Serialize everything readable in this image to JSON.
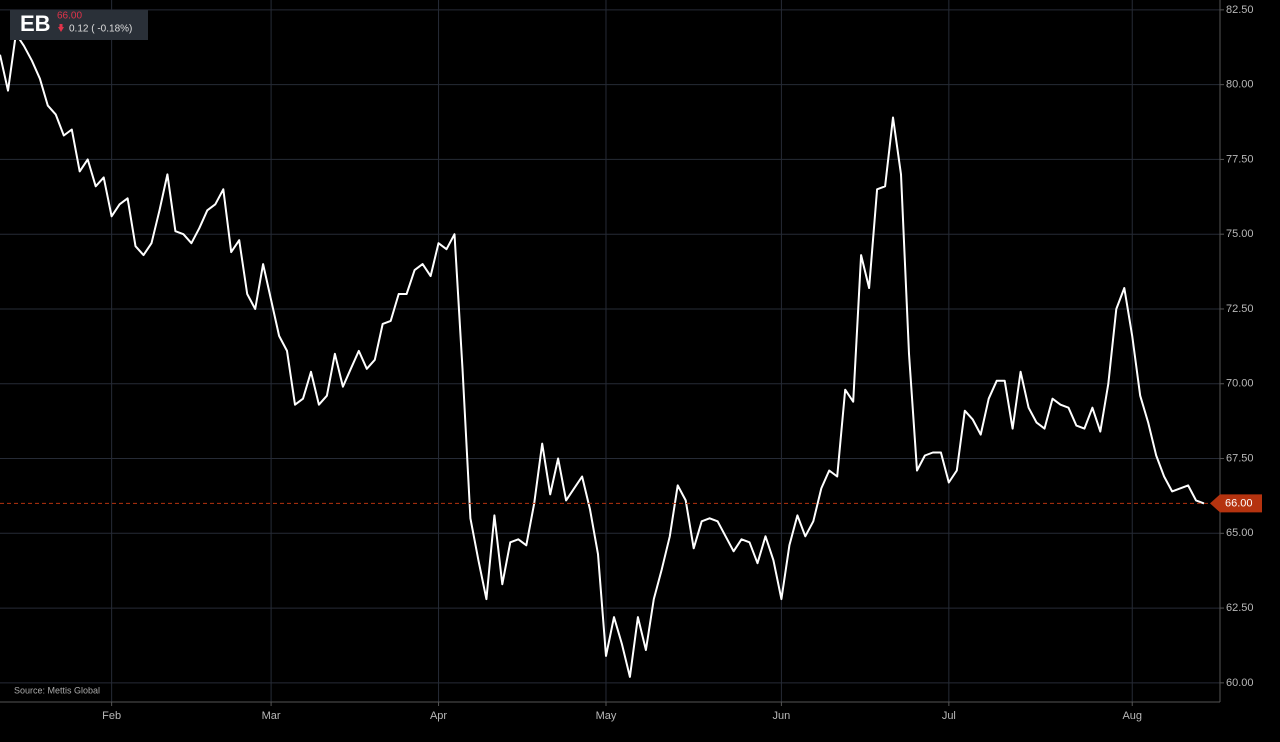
{
  "chart_data": {
    "type": "line",
    "header": {
      "symbol": "EB",
      "price": "66.00",
      "change": "0.12 ( -0.18%)"
    },
    "source": "Source: Mettis Global",
    "categories": [
      null,
      null,
      null,
      null,
      null,
      null,
      null,
      null,
      null,
      null,
      null,
      null,
      null,
      null,
      "Feb",
      null,
      null,
      null,
      null,
      null,
      null,
      null,
      null,
      null,
      null,
      null,
      null,
      null,
      null,
      null,
      null,
      null,
      null,
      null,
      "Mar",
      null,
      null,
      null,
      null,
      null,
      null,
      null,
      null,
      null,
      null,
      null,
      null,
      null,
      null,
      null,
      null,
      null,
      null,
      null,
      null,
      "Apr",
      null,
      null,
      null,
      null,
      null,
      null,
      null,
      null,
      null,
      null,
      null,
      null,
      null,
      null,
      null,
      null,
      null,
      null,
      null,
      null,
      "May",
      null,
      null,
      null,
      null,
      null,
      null,
      null,
      null,
      null,
      null,
      null,
      null,
      null,
      null,
      null,
      null,
      null,
      null,
      null,
      null,
      null,
      "Jun",
      null,
      null,
      null,
      null,
      null,
      null,
      null,
      null,
      null,
      null,
      null,
      null,
      null,
      null,
      null,
      null,
      null,
      null,
      null,
      null,
      "Jul",
      null,
      null,
      null,
      null,
      null,
      null,
      null,
      null,
      null,
      null,
      null,
      null,
      null,
      null,
      null,
      null,
      null,
      null,
      null,
      null,
      null,
      null,
      "Aug",
      null,
      null,
      null,
      null,
      null,
      null,
      null,
      null,
      null
    ],
    "series": [
      {
        "name": "EB",
        "color": "#ffffff",
        "values": [
          81.0,
          79.8,
          81.7,
          81.3,
          80.8,
          80.2,
          79.3,
          79.0,
          78.3,
          78.5,
          77.1,
          77.5,
          76.6,
          76.9,
          75.6,
          76.0,
          76.2,
          74.6,
          74.3,
          74.7,
          75.8,
          77.0,
          75.1,
          75.0,
          74.7,
          75.2,
          75.8,
          76.0,
          76.5,
          74.4,
          74.8,
          73.0,
          72.5,
          74.0,
          72.8,
          71.6,
          71.1,
          69.3,
          69.5,
          70.4,
          69.3,
          69.6,
          71.0,
          69.9,
          70.5,
          71.1,
          70.5,
          70.8,
          72.0,
          72.1,
          73.0,
          73.0,
          73.8,
          74.0,
          73.6,
          74.7,
          74.5,
          75.0,
          70.5,
          65.5,
          64.1,
          62.8,
          65.6,
          63.3,
          64.7,
          64.8,
          64.6,
          66.0,
          68.0,
          66.3,
          67.5,
          66.1,
          66.5,
          66.9,
          65.8,
          64.3,
          60.9,
          62.2,
          61.3,
          60.2,
          62.2,
          61.1,
          62.8,
          63.8,
          64.9,
          66.6,
          66.1,
          64.5,
          65.4,
          65.5,
          65.4,
          64.9,
          64.4,
          64.8,
          64.7,
          64.0,
          64.9,
          64.1,
          62.8,
          64.6,
          65.6,
          64.9,
          65.4,
          66.5,
          67.1,
          66.9,
          69.8,
          69.4,
          74.3,
          73.2,
          76.5,
          76.6,
          78.9,
          77.0,
          71.0,
          67.1,
          67.6,
          67.7,
          67.7,
          66.7,
          67.1,
          69.1,
          68.8,
          68.3,
          69.5,
          70.1,
          70.1,
          68.5,
          70.4,
          69.2,
          68.7,
          68.5,
          69.5,
          69.3,
          69.2,
          68.6,
          68.5,
          69.2,
          68.4,
          70.0,
          72.5,
          73.2,
          71.6,
          69.6,
          68.7,
          67.6,
          66.9,
          66.4,
          66.5,
          66.6,
          66.1,
          66.0
        ]
      }
    ],
    "last_label": {
      "value": 66,
      "label": "66.00",
      "color": "#b5330f"
    },
    "ylim": [
      59.36,
      82.83
    ],
    "yticks": [
      {
        "value": 60,
        "label": "60.00"
      },
      {
        "value": 62.5,
        "label": "62.50"
      },
      {
        "value": 65,
        "label": "65.00"
      },
      {
        "value": 67.5,
        "label": "67.50"
      },
      {
        "value": 70,
        "label": "70.00"
      },
      {
        "value": 72.5,
        "label": "72.50"
      },
      {
        "value": 75,
        "label": "75.00"
      },
      {
        "value": 77.5,
        "label": "77.50"
      },
      {
        "value": 80,
        "label": "80.00"
      },
      {
        "value": 82.5,
        "label": "82.50"
      }
    ],
    "grid": true
  }
}
